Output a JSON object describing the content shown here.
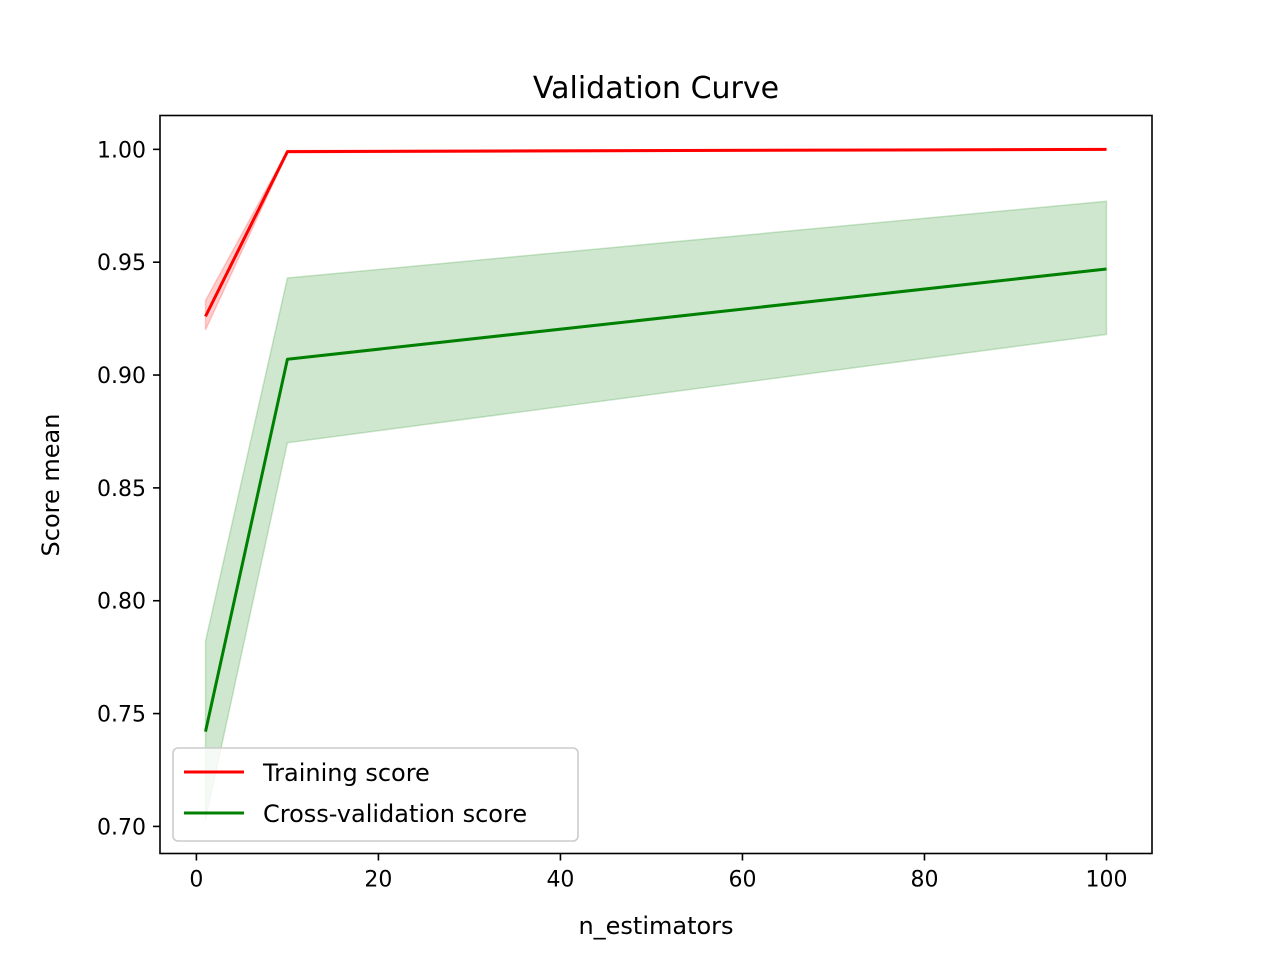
{
  "chart_data": {
    "type": "line",
    "title": "Validation Curve",
    "xlabel": "n_estimators",
    "ylabel": "Score mean",
    "xlim": [
      -4,
      105
    ],
    "ylim": [
      0.688,
      1.015
    ],
    "xticks": [
      0,
      20,
      40,
      60,
      80,
      100
    ],
    "yticks": [
      0.7,
      0.75,
      0.8,
      0.85,
      0.9,
      0.95,
      1.0
    ],
    "xtick_labels": [
      "0",
      "20",
      "40",
      "60",
      "80",
      "100"
    ],
    "ytick_labels": [
      "0.70",
      "0.75",
      "0.80",
      "0.85",
      "0.90",
      "0.95",
      "1.00"
    ],
    "grid": false,
    "legend_position": "lower-left",
    "x": [
      1,
      10,
      100
    ],
    "series": [
      {
        "name": "Training score",
        "color": "#ff0000",
        "values": [
          0.926,
          0.999,
          1.0
        ],
        "band_lower": [
          0.92,
          0.9985,
          0.9998
        ],
        "band_upper": [
          0.933,
          0.9995,
          1.0002
        ]
      },
      {
        "name": "Cross-validation score",
        "color": "#008000",
        "values": [
          0.742,
          0.907,
          0.947
        ],
        "band_lower": [
          0.703,
          0.87,
          0.918
        ],
        "band_upper": [
          0.782,
          0.943,
          0.977
        ]
      }
    ]
  }
}
